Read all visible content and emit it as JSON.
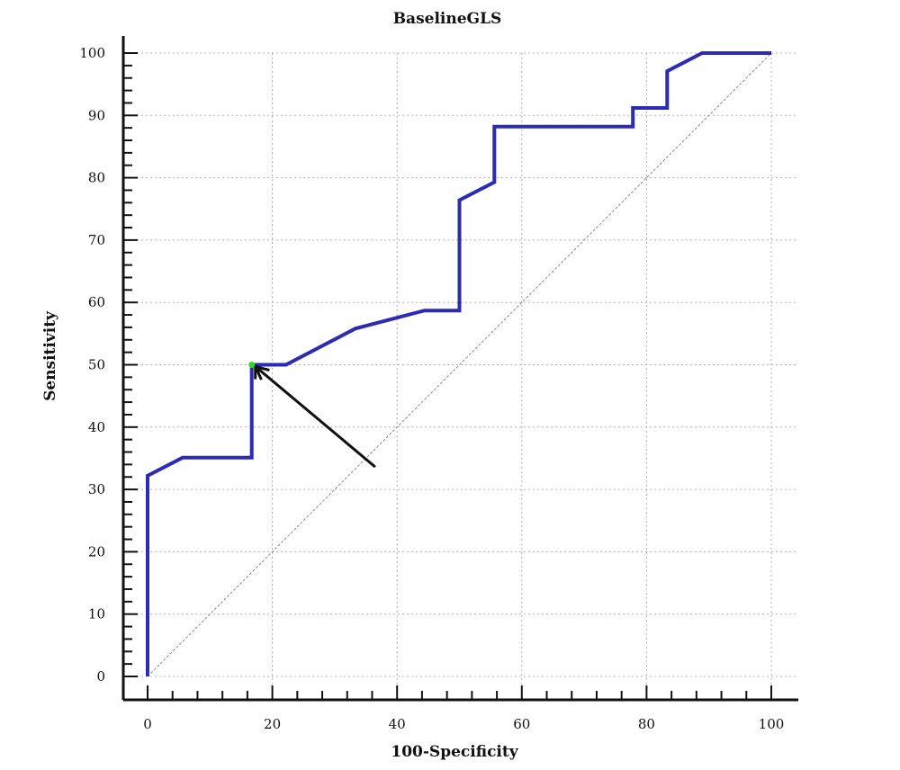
{
  "chart_data": {
    "type": "line",
    "title": "BaselineGLS",
    "xlabel": "100-Specificity",
    "ylabel": "Sensitivity",
    "xlim": [
      0,
      100
    ],
    "ylim": [
      0,
      100
    ],
    "xticks": [
      0,
      20,
      40,
      60,
      80,
      100
    ],
    "yticks": [
      0,
      10,
      20,
      30,
      40,
      50,
      60,
      70,
      80,
      90,
      100
    ],
    "grid": true,
    "series": [
      {
        "color": "#2b2bb3",
        "points": [
          [
            0,
            0
          ],
          [
            0,
            32.2
          ],
          [
            5.6,
            35.1
          ],
          [
            16.7,
            35.1
          ],
          [
            16.7,
            50
          ],
          [
            22.2,
            50
          ],
          [
            33.3,
            55.8
          ],
          [
            44.4,
            58.7
          ],
          [
            50,
            58.7
          ],
          [
            50,
            76.4
          ],
          [
            55.6,
            79.3
          ],
          [
            55.6,
            88.2
          ],
          [
            77.8,
            88.2
          ],
          [
            77.8,
            91.2
          ],
          [
            83.3,
            91.2
          ],
          [
            83.3,
            97.1
          ],
          [
            88.9,
            100
          ],
          [
            100,
            100
          ]
        ]
      }
    ],
    "reference_line": {
      "points": [
        [
          0,
          0
        ],
        [
          100,
          100
        ]
      ],
      "color": "#8a8a8a"
    },
    "optimal_point": {
      "x": 16.7,
      "y": 50,
      "color": "#39d12a"
    },
    "annotation_arrow": {
      "from": [
        36.5,
        33.6
      ],
      "to": [
        17.3,
        49.7
      ],
      "color": "#111111"
    }
  }
}
